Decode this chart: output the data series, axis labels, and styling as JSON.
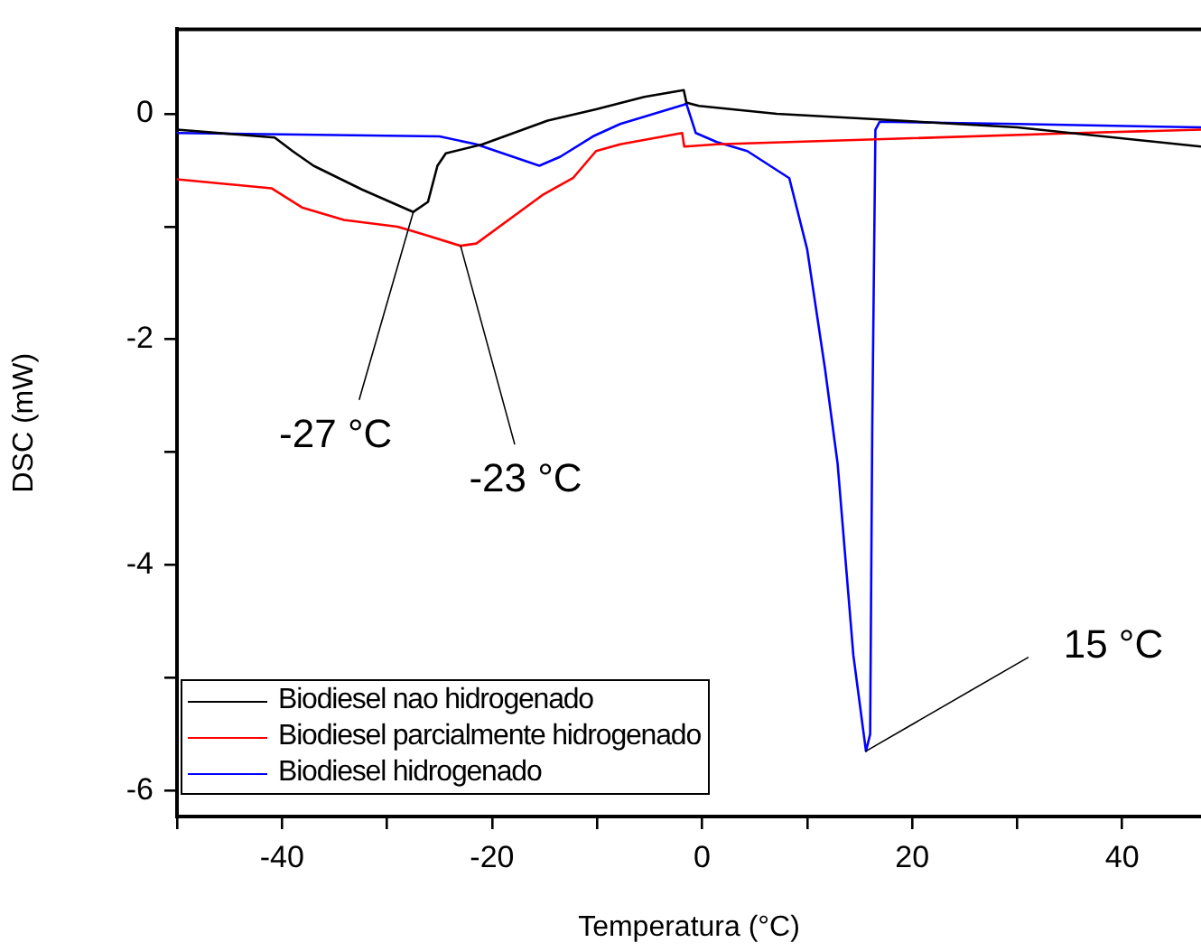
{
  "chart_data": {
    "type": "line",
    "xlabel": "Temperatura (°C)",
    "ylabel": "DSC (mW)",
    "xlim": [
      -50,
      47.5
    ],
    "ylim": [
      -6.23,
      0.75
    ],
    "xticks": [
      {
        "value": -50,
        "label": null
      },
      -40,
      {
        "value": -30,
        "label": null
      },
      -20,
      {
        "value": -10,
        "label": null
      },
      0,
      {
        "value": 10,
        "label": null
      },
      20,
      {
        "value": 30,
        "label": null
      },
      40
    ],
    "yticks": [
      {
        "value": -6,
        "label": "-6"
      },
      {
        "value": -5,
        "label": null
      },
      {
        "value": -4,
        "label": "-4"
      },
      {
        "value": -3,
        "label": null
      },
      {
        "value": -2,
        "label": "-2"
      },
      {
        "value": -1,
        "label": null
      },
      0
    ],
    "grid": false,
    "legend": "bottom left",
    "marker": "none",
    "line_style": "solid",
    "series": [
      {
        "name": "Biodiesel nao hidrogenado",
        "color": "#000000",
        "x": [
          -50,
          -40.7,
          -39,
          -37,
          -32.4,
          -27.5,
          -26.1,
          -25.2,
          -24.4,
          -20.9,
          -14.7,
          -10.1,
          -5.5,
          -1.75,
          -1.5,
          -0.3,
          7.1,
          16.9,
          30,
          47.5
        ],
        "values": [
          -0.14,
          -0.21,
          -0.33,
          -0.46,
          -0.67,
          -0.87,
          -0.78,
          -0.46,
          -0.35,
          -0.27,
          -0.06,
          0.04,
          0.15,
          0.21,
          0.1,
          0.07,
          0.0,
          -0.05,
          -0.12,
          -0.29
        ]
      },
      {
        "name": "Biodiesel parcialmente hidrogenado",
        "color": "#ff0000",
        "x": [
          -50,
          -41,
          -38.1,
          -34.1,
          -29,
          -26.1,
          -23,
          -21.5,
          -15.2,
          -12.3,
          -10.1,
          -7.8,
          -1.9,
          -1.7,
          1.4,
          18.6,
          35.8,
          47.5
        ],
        "values": [
          -0.58,
          -0.66,
          -0.83,
          -0.94,
          -1.0,
          -1.08,
          -1.17,
          -1.15,
          -0.72,
          -0.57,
          -0.33,
          -0.27,
          -0.17,
          -0.29,
          -0.27,
          -0.22,
          -0.17,
          -0.14
        ]
      },
      {
        "name": "Biodiesel hidrogenado",
        "color": "#0000ff",
        "x": [
          -50,
          -25,
          -21.5,
          -15.5,
          -13.5,
          -10.4,
          -7.8,
          -1.75,
          -1.5,
          -0.6,
          1.4,
          4.3,
          8.3,
          10,
          11.7,
          12.9,
          14.4,
          15.6,
          16,
          16.2,
          16.5,
          16.9,
          30,
          47.5
        ],
        "values": [
          -0.17,
          -0.2,
          -0.27,
          -0.46,
          -0.38,
          -0.2,
          -0.09,
          0.08,
          0.09,
          -0.17,
          -0.25,
          -0.33,
          -0.57,
          -1.2,
          -2.26,
          -3.1,
          -4.8,
          -5.65,
          -5.5,
          -2.78,
          -0.14,
          -0.07,
          -0.09,
          -0.12
        ]
      }
    ],
    "annotations": [
      {
        "text": "-27 °C",
        "x": -27.5,
        "y": -0.87
      },
      {
        "text": "-23 °C",
        "x": -23,
        "y": -1.17
      },
      {
        "text": "15 °C",
        "x": 15.6,
        "y": -5.65
      }
    ]
  }
}
